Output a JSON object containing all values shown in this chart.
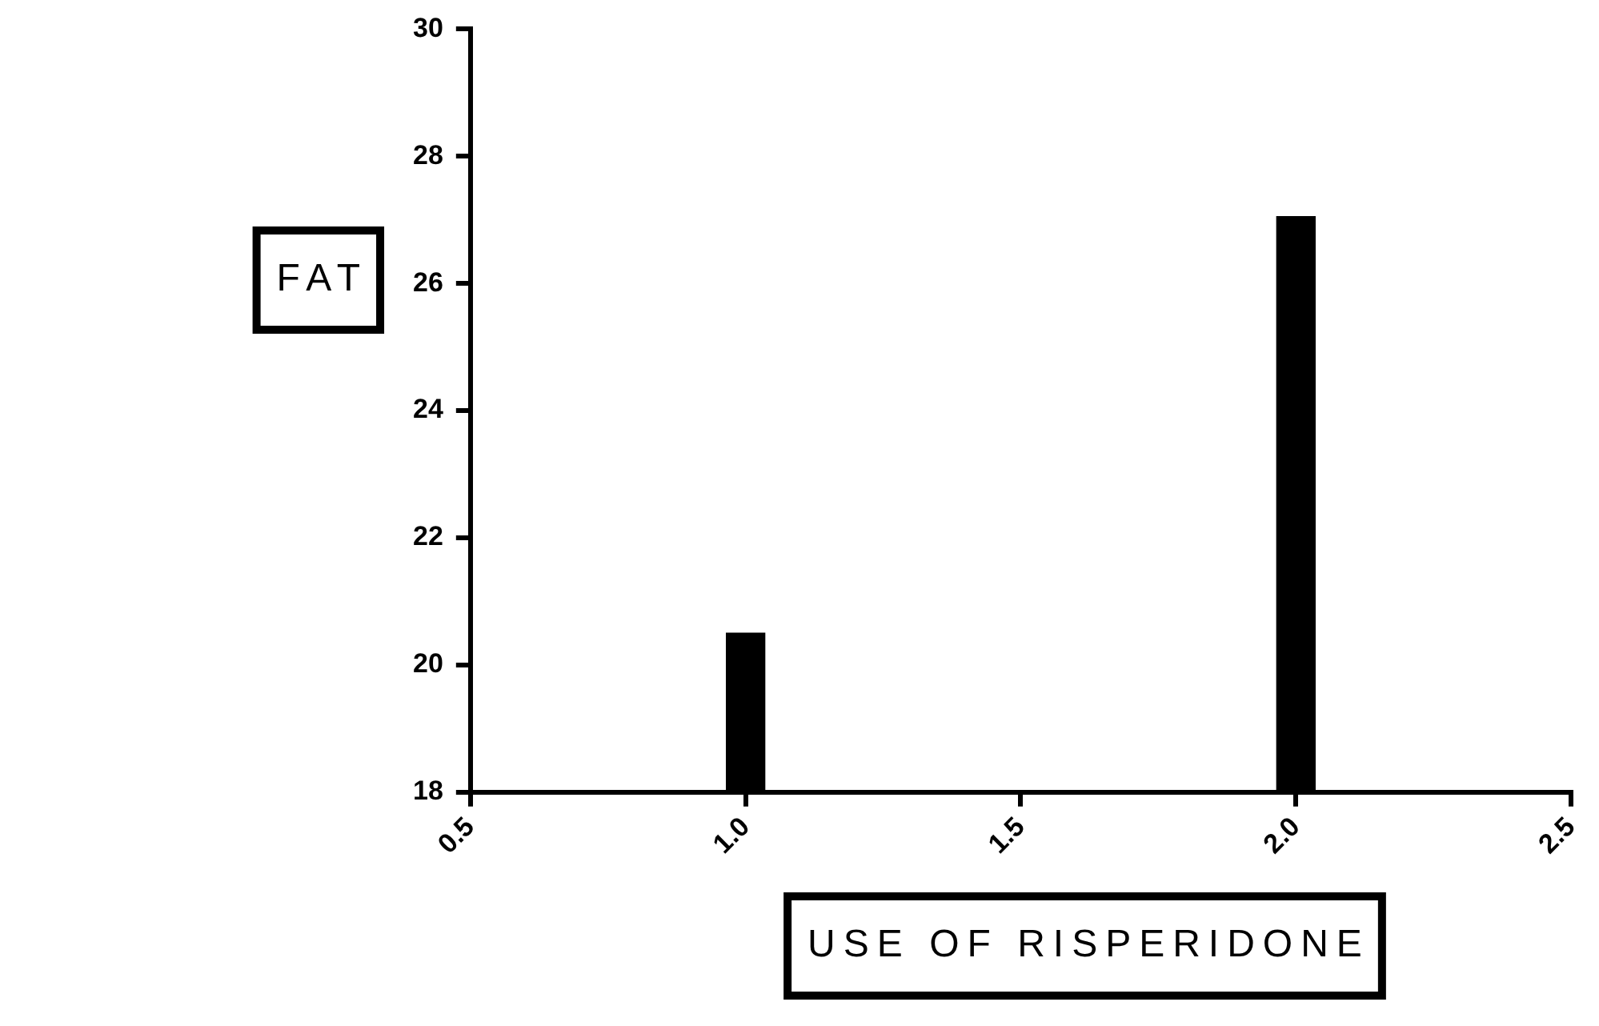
{
  "chart_data": {
    "type": "bar",
    "xlabel": "USE OF RISPERIDONE",
    "ylabel": "FAT",
    "x": [
      1,
      2
    ],
    "values": [
      20.5,
      27.05
    ],
    "color": "#000000",
    "xlim": [
      0.5,
      2.5
    ],
    "xticks": [
      {
        "value": 0.5,
        "label": "0.5"
      },
      {
        "value": 1,
        "label": "1.0"
      },
      {
        "value": 1.5,
        "label": "1.5"
      },
      {
        "value": 2,
        "label": "2.0"
      },
      {
        "value": 2.5,
        "label": "2.5"
      }
    ],
    "ylim": [
      18,
      30
    ],
    "yticks": [
      18,
      20,
      22,
      24,
      26,
      28,
      30
    ],
    "grid": false,
    "legend": false
  }
}
